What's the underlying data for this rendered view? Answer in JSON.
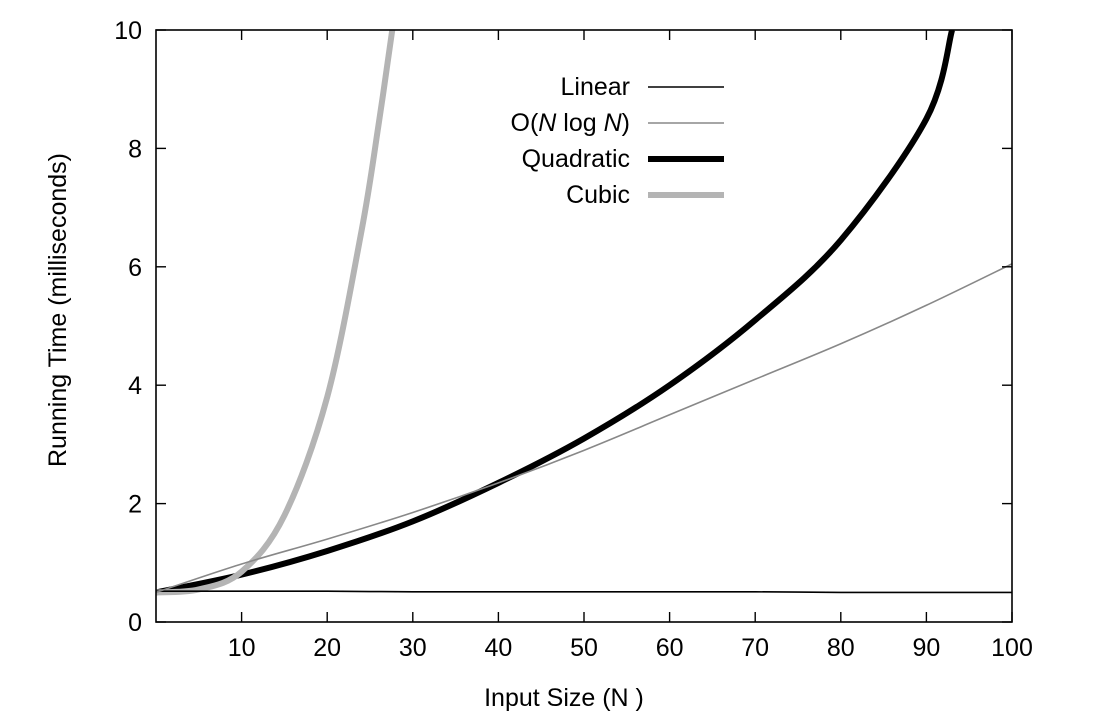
{
  "chart_data": {
    "type": "line",
    "xlabel": "Input Size (N )",
    "ylabel": "Running Time (milliseconds)",
    "xlim": [
      0,
      100
    ],
    "ylim": [
      0,
      10
    ],
    "xticks": [
      10,
      20,
      30,
      40,
      50,
      60,
      70,
      80,
      90,
      100
    ],
    "yticks": [
      0,
      2,
      4,
      6,
      8,
      10
    ],
    "grid": false,
    "legend_position": "top-center",
    "series": [
      {
        "name": "Linear",
        "color": "#000000",
        "style": "thin",
        "x": [
          0,
          10,
          20,
          30,
          40,
          50,
          60,
          70,
          80,
          90,
          100
        ],
        "y": [
          0.52,
          0.52,
          0.52,
          0.51,
          0.51,
          0.51,
          0.51,
          0.51,
          0.5,
          0.5,
          0.5
        ]
      },
      {
        "name": "O(N log N)",
        "color": "#888888",
        "style": "thin",
        "x": [
          0,
          10,
          20,
          30,
          40,
          50,
          60,
          70,
          80,
          90,
          100
        ],
        "y": [
          0.5,
          0.98,
          1.4,
          1.85,
          2.35,
          2.9,
          3.5,
          4.1,
          4.7,
          5.35,
          6.05
        ]
      },
      {
        "name": "Quadratic",
        "color": "#000000",
        "style": "thick",
        "x": [
          0,
          10,
          20,
          30,
          40,
          50,
          60,
          70,
          80,
          90,
          93
        ],
        "y": [
          0.5,
          0.8,
          1.2,
          1.7,
          2.35,
          3.1,
          4.0,
          5.1,
          6.45,
          8.5,
          10
        ]
      },
      {
        "name": "Cubic",
        "color": "#b4b4b4",
        "style": "thick",
        "x": [
          0,
          5,
          10,
          15,
          20,
          24,
          26,
          27.6
        ],
        "y": [
          0.5,
          0.55,
          0.85,
          1.8,
          3.8,
          6.6,
          8.4,
          10
        ]
      }
    ]
  }
}
